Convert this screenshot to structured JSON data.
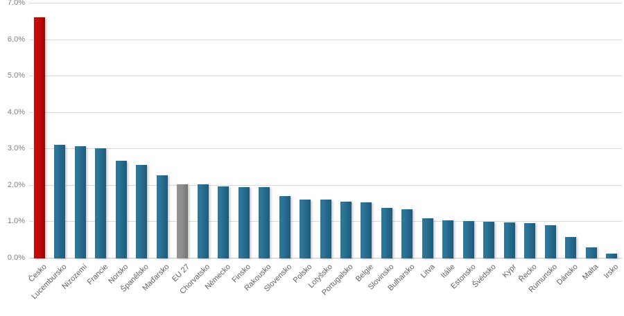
{
  "chart_data": {
    "type": "bar",
    "title": "",
    "xlabel": "",
    "ylabel": "",
    "value_format": "percent",
    "ylim": [
      0,
      7
    ],
    "ytick_labels": [
      "0.0%",
      "1.0%",
      "2.0%",
      "3.0%",
      "4.0%",
      "5.0%",
      "6.0%",
      "7.0%"
    ],
    "grid": "horizontal-only",
    "legend": "none",
    "categories": [
      "Česko",
      "Lucembursko",
      "Nizozemí",
      "Francie",
      "Norsko",
      "Španělsko",
      "Maďarsko",
      "EU 27",
      "Chorvatsko",
      "Německo",
      "Finsko",
      "Rakousko",
      "Slovensko",
      "Polsko",
      "Lotyšsko",
      "Portugalsko",
      "Belgie",
      "Slovinsko",
      "Bulharsko",
      "Litva",
      "Itálie",
      "Estonsko",
      "Švédsko",
      "Kypr",
      "Řecko",
      "Rumunsko",
      "Dánsko",
      "Malta",
      "Irsko"
    ],
    "values": [
      6.62,
      3.12,
      3.09,
      3.02,
      2.69,
      2.57,
      2.28,
      2.04,
      2.03,
      1.98,
      1.96,
      1.96,
      1.72,
      1.62,
      1.62,
      1.56,
      1.54,
      1.38,
      1.35,
      1.1,
      1.04,
      1.03,
      1.01,
      0.99,
      0.97,
      0.92,
      0.59,
      0.3,
      0.14
    ],
    "bar_roles": [
      "highlight",
      "default",
      "default",
      "default",
      "default",
      "default",
      "default",
      "reference",
      "default",
      "default",
      "default",
      "default",
      "default",
      "default",
      "default",
      "default",
      "default",
      "default",
      "default",
      "default",
      "default",
      "default",
      "default",
      "default",
      "default",
      "default",
      "default",
      "default",
      "default"
    ],
    "colors": {
      "highlight": "#C00000",
      "default": "#24688A",
      "reference": "#808080",
      "gridline": "#D9D9D9",
      "axis_line": "#C8C6C3",
      "ytick_text": "#7F7F7F",
      "xtick_text": "#5F5F5F"
    }
  }
}
